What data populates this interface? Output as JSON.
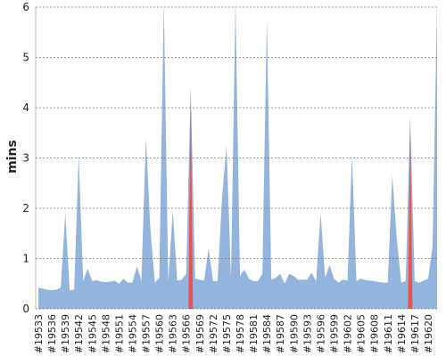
{
  "chart_data": {
    "type": "area",
    "y_label": "mins",
    "categories": [
      "#19533",
      null,
      null,
      "#19536",
      null,
      null,
      "#19539",
      null,
      null,
      "#19542",
      null,
      null,
      "#19545",
      null,
      null,
      "#19548",
      null,
      null,
      "#19551",
      null,
      null,
      "#19554",
      null,
      null,
      "#19557",
      null,
      null,
      "#19560",
      null,
      null,
      "#19563",
      null,
      null,
      "#19566",
      null,
      null,
      "#19569",
      null,
      null,
      "#19572",
      null,
      null,
      "#19575",
      null,
      null,
      "#19578",
      null,
      null,
      "#19581",
      null,
      null,
      "#19584",
      null,
      null,
      "#19587",
      null,
      null,
      "#19590",
      null,
      null,
      "#19593",
      null,
      null,
      "#19596",
      null,
      null,
      "#19599",
      null,
      null,
      "#19602",
      null,
      null,
      "#19605",
      null,
      null,
      "#19608",
      null,
      null,
      "#19611",
      null,
      null,
      "#19614",
      null,
      null,
      "#19617",
      null,
      null,
      "#19620",
      null,
      null
    ],
    "values": [
      0.42,
      0.4,
      0.38,
      0.37,
      0.38,
      0.42,
      1.9,
      0.37,
      0.38,
      3.05,
      0.55,
      0.8,
      0.55,
      0.57,
      0.54,
      0.53,
      0.54,
      0.56,
      0.5,
      0.6,
      0.52,
      0.52,
      0.85,
      0.55,
      3.4,
      1.6,
      0.52,
      0.62,
      6.1,
      0.55,
      1.95,
      0.56,
      0.58,
      0.7,
      4.4,
      0.6,
      0.58,
      0.56,
      1.2,
      0.55,
      0.55,
      2.2,
      3.25,
      0.6,
      6.1,
      0.65,
      0.78,
      0.6,
      0.55,
      0.55,
      0.7,
      5.75,
      0.58,
      0.62,
      0.7,
      0.5,
      0.7,
      0.65,
      0.58,
      0.58,
      0.58,
      0.72,
      0.55,
      1.9,
      0.62,
      0.87,
      0.6,
      0.52,
      0.58,
      0.56,
      3.05,
      0.55,
      0.6,
      0.57,
      0.56,
      0.55,
      0.53,
      0.52,
      0.52,
      2.65,
      1.4,
      0.52,
      0.55,
      3.8,
      0.55,
      0.52,
      0.56,
      0.6,
      1.25,
      6.1
    ],
    "color": "#92b4dd",
    "colors": [
      "#92b4dd",
      "#92b4dd",
      "#92b4dd",
      "#92b4dd",
      "#92b4dd",
      "#92b4dd",
      "#92b4dd",
      "#92b4dd",
      "#92b4dd",
      "#92b4dd",
      "#92b4dd",
      "#92b4dd",
      "#92b4dd",
      "#92b4dd",
      "#92b4dd",
      "#92b4dd",
      "#92b4dd",
      "#92b4dd",
      "#92b4dd",
      "#92b4dd",
      "#92b4dd",
      "#92b4dd",
      "#92b4dd",
      "#92b4dd",
      "#92b4dd",
      "#92b4dd",
      "#92b4dd",
      "#92b4dd",
      "#92b4dd",
      "#92b4dd",
      "#92b4dd",
      "#92b4dd",
      "#92b4dd",
      "#92b4dd",
      "#e8534f",
      "#92b4dd",
      "#92b4dd",
      "#92b4dd",
      "#92b4dd",
      "#92b4dd",
      "#92b4dd",
      "#92b4dd",
      "#92b4dd",
      "#92b4dd",
      "#92b4dd",
      "#92b4dd",
      "#92b4dd",
      "#92b4dd",
      "#92b4dd",
      "#92b4dd",
      "#92b4dd",
      "#92b4dd",
      "#92b4dd",
      "#92b4dd",
      "#92b4dd",
      "#92b4dd",
      "#92b4dd",
      "#92b4dd",
      "#92b4dd",
      "#92b4dd",
      "#92b4dd",
      "#92b4dd",
      "#92b4dd",
      "#92b4dd",
      "#92b4dd",
      "#92b4dd",
      "#92b4dd",
      "#92b4dd",
      "#92b4dd",
      "#92b4dd",
      "#92b4dd",
      "#92b4dd",
      "#92b4dd",
      "#92b4dd",
      "#92b4dd",
      "#92b4dd",
      "#92b4dd",
      "#92b4dd",
      "#92b4dd",
      "#92b4dd",
      "#92b4dd",
      "#92b4dd",
      "#92b4dd",
      "#e8534f",
      "#92b4dd",
      "#92b4dd",
      "#92b4dd",
      "#92b4dd",
      "#92b4dd",
      "#92b4dd"
    ],
    "ylim": [
      0,
      6
    ],
    "yticks": [
      0,
      1,
      2,
      3,
      4,
      5,
      6
    ],
    "grid": true
  }
}
